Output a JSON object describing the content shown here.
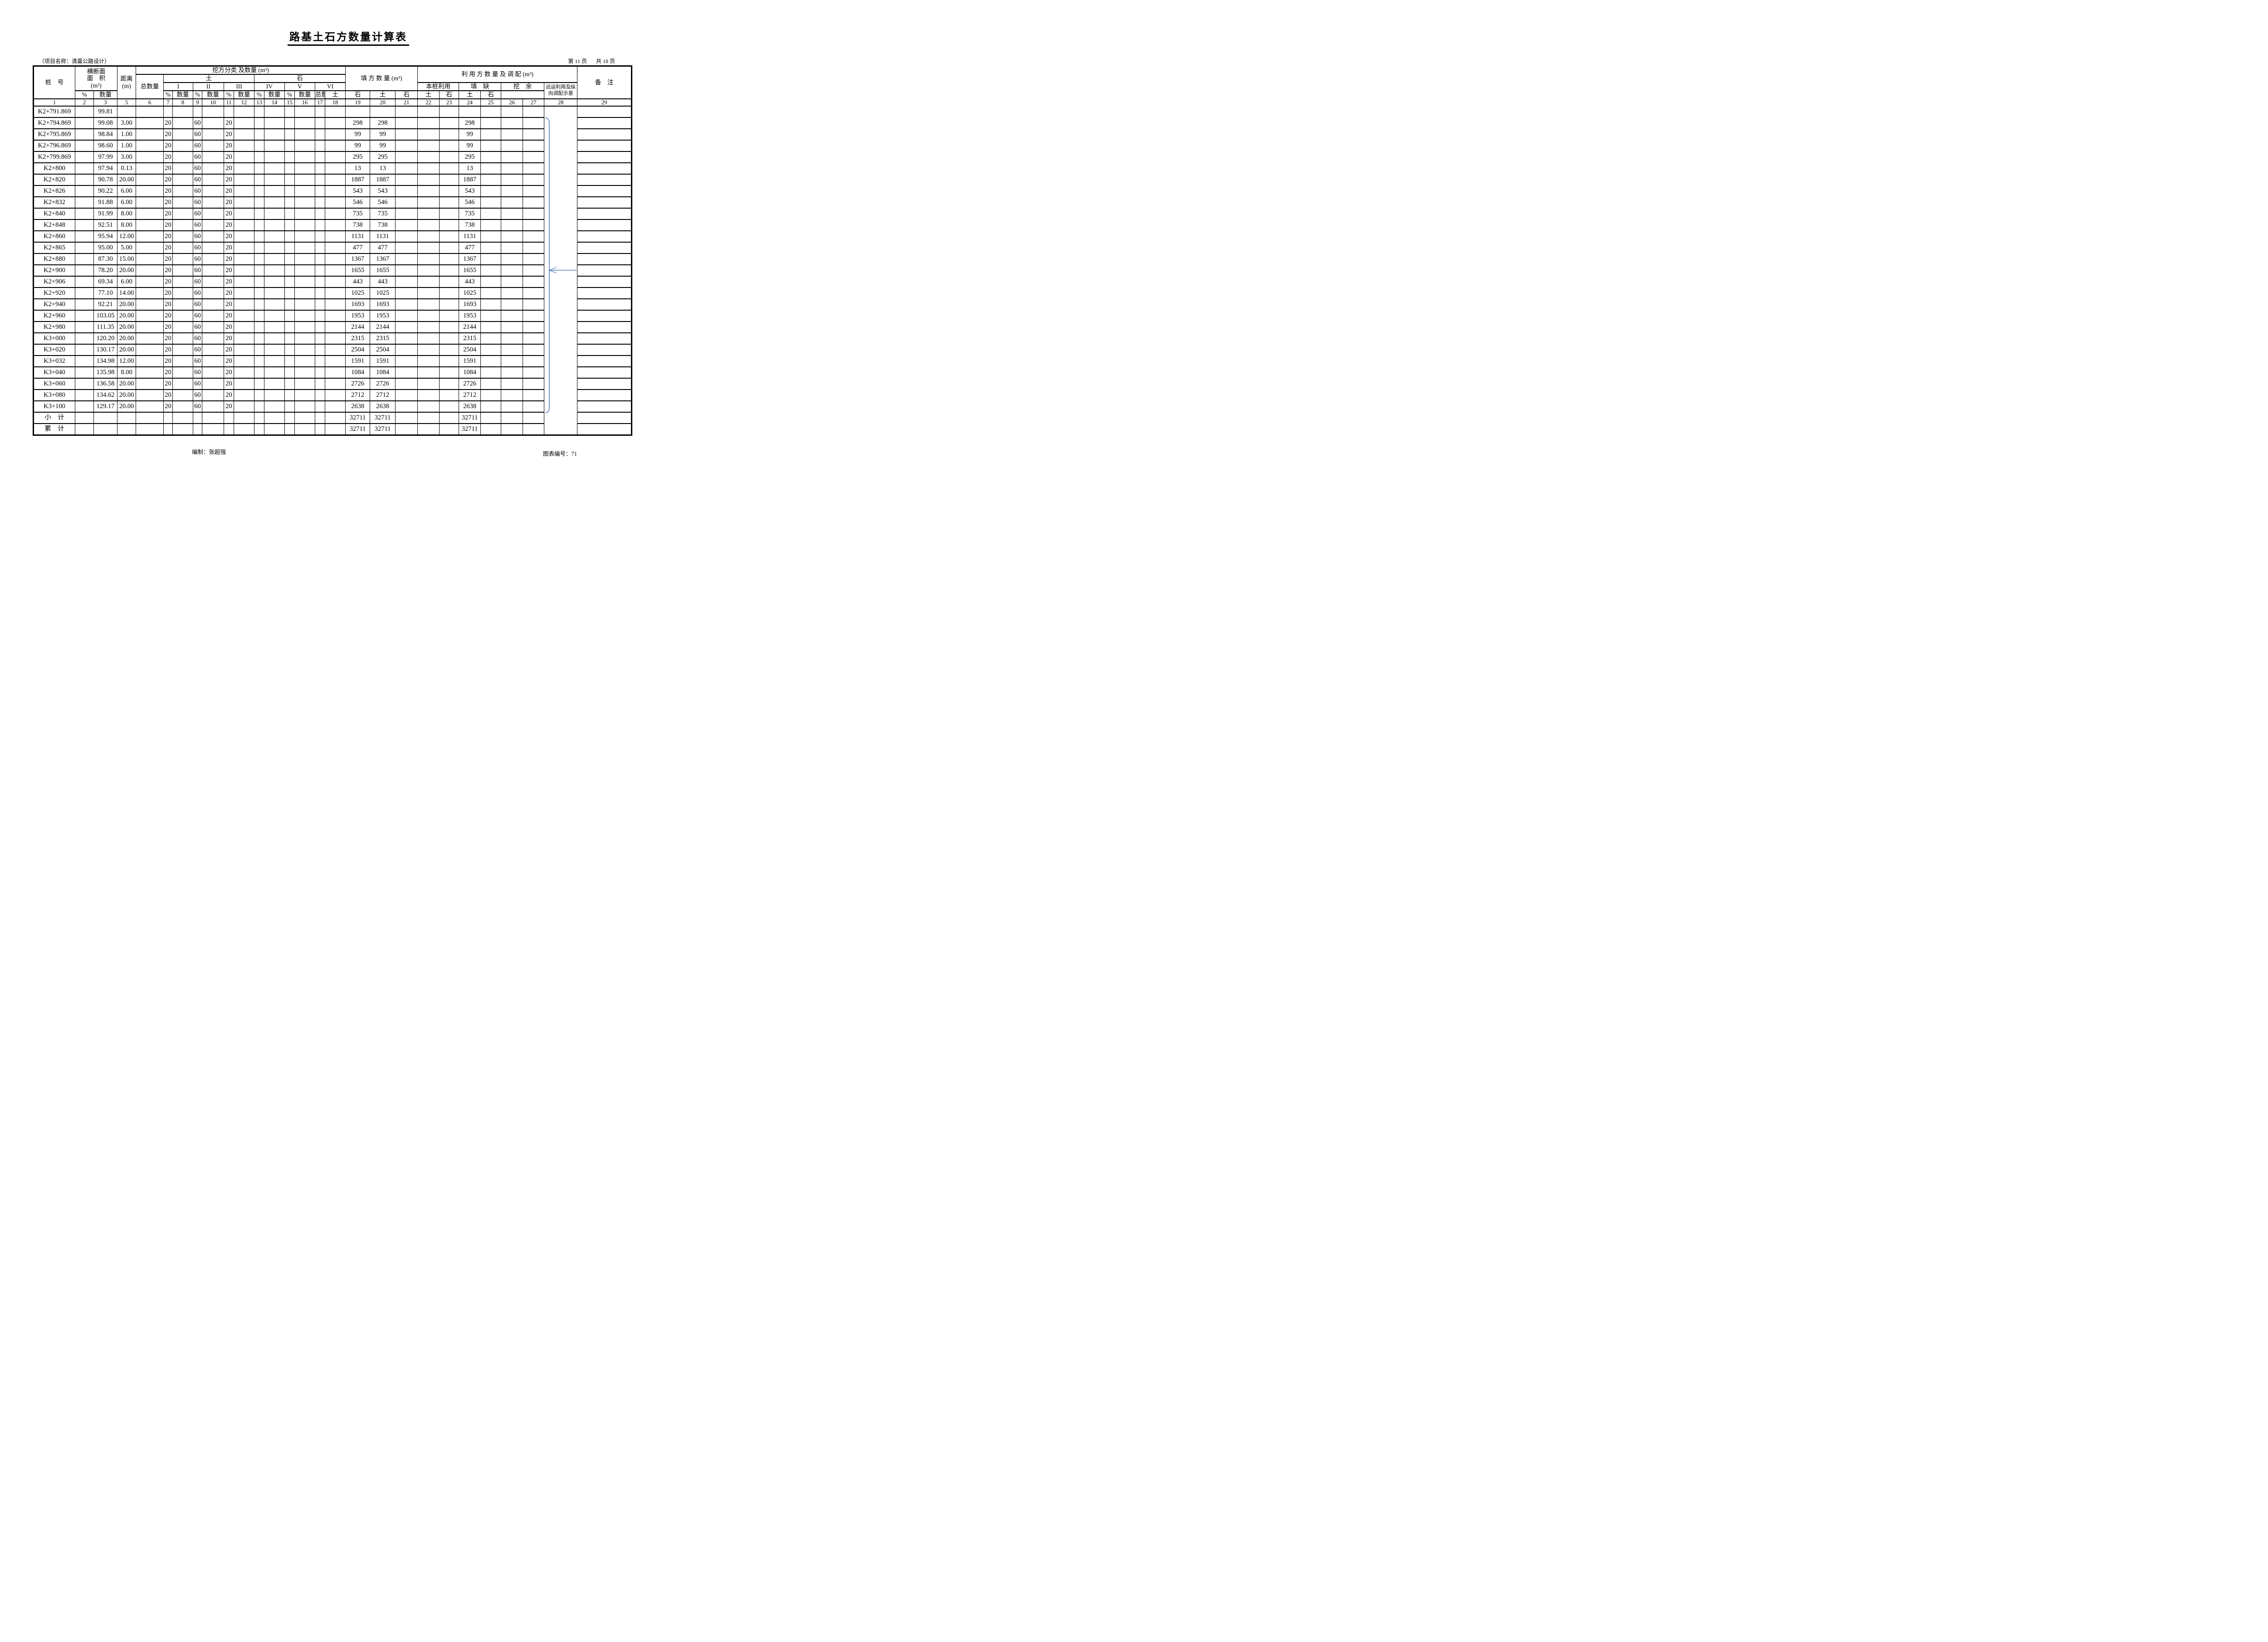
{
  "page": {
    "title": "路基土石方数量计算表",
    "project_label": "（项目名称：清嘉公路设计）",
    "page_number": "第 11 页",
    "page_total": "共 18 页",
    "footer_left": "编制：张超强",
    "footer_right": "图表编号：71"
  },
  "header": {
    "pile": "桩　号",
    "cross1": "横断面",
    "cross2": "面　积",
    "cross3": "(m²)",
    "cut": "挖方",
    "fill": "填方",
    "dist1": "距离",
    "dist2": "(m)",
    "excav_group": "挖方分类 及数量 (m³)",
    "total": "总数量",
    "soil": "土",
    "rock": "石",
    "grades": [
      "I",
      "II",
      "III",
      "IV",
      "V",
      "VI"
    ],
    "pct": "%",
    "qty": "数量",
    "fill_group": "填 方 数 量 (m³)",
    "use_group": "利 用 方 数 量 及 调 配 (m³)",
    "pile_use": "本桩利用",
    "fill_short": "填　缺",
    "cut_surplus": "挖　余",
    "haul1": "远运利用及纵",
    "haul2": "向调配示意",
    "remark": "备　注",
    "numbers": [
      "1",
      "2",
      "3",
      "5",
      "6",
      "7",
      "8",
      "9",
      "10",
      "11",
      "12",
      "13",
      "14",
      "15",
      "16",
      "17",
      "18",
      "19",
      "20",
      "21",
      "22",
      "23",
      "24",
      "25",
      "26",
      "27",
      "28",
      "29"
    ]
  },
  "rows": [
    [
      "K2+791.869",
      "99.81",
      "",
      "",
      "",
      "",
      "",
      "",
      ""
    ],
    [
      "K2+794.869",
      "99.08",
      "3.00",
      "20",
      "60",
      "20",
      "298",
      "298",
      "298"
    ],
    [
      "K2+795.869",
      "98.84",
      "1.00",
      "20",
      "60",
      "20",
      "99",
      "99",
      "99"
    ],
    [
      "K2+796.869",
      "98.60",
      "1.00",
      "20",
      "60",
      "20",
      "99",
      "99",
      "99"
    ],
    [
      "K2+799.869",
      "97.99",
      "3.00",
      "20",
      "60",
      "20",
      "295",
      "295",
      "295"
    ],
    [
      "K2+800",
      "97.94",
      "0.13",
      "20",
      "60",
      "20",
      "13",
      "13",
      "13"
    ],
    [
      "K2+820",
      "90.78",
      "20.00",
      "20",
      "60",
      "20",
      "1887",
      "1887",
      "1887"
    ],
    [
      "K2+826",
      "90.22",
      "6.00",
      "20",
      "60",
      "20",
      "543",
      "543",
      "543"
    ],
    [
      "K2+832",
      "91.88",
      "6.00",
      "20",
      "60",
      "20",
      "546",
      "546",
      "546"
    ],
    [
      "K2+840",
      "91.99",
      "8.00",
      "20",
      "60",
      "20",
      "735",
      "735",
      "735"
    ],
    [
      "K2+848",
      "92.51",
      "8.00",
      "20",
      "60",
      "20",
      "738",
      "738",
      "738"
    ],
    [
      "K2+860",
      "95.94",
      "12.00",
      "20",
      "60",
      "20",
      "1131",
      "1131",
      "1131"
    ],
    [
      "K2+865",
      "95.00",
      "5.00",
      "20",
      "60",
      "20",
      "477",
      "477",
      "477"
    ],
    [
      "K2+880",
      "87.30",
      "15.00",
      "20",
      "60",
      "20",
      "1367",
      "1367",
      "1367"
    ],
    [
      "K2+900",
      "78.20",
      "20.00",
      "20",
      "60",
      "20",
      "1655",
      "1655",
      "1655"
    ],
    [
      "K2+906",
      "69.34",
      "6.00",
      "20",
      "60",
      "20",
      "443",
      "443",
      "443"
    ],
    [
      "K2+920",
      "77.10",
      "14.00",
      "20",
      "60",
      "20",
      "1025",
      "1025",
      "1025"
    ],
    [
      "K2+940",
      "92.21",
      "20.00",
      "20",
      "60",
      "20",
      "1693",
      "1693",
      "1693"
    ],
    [
      "K2+960",
      "103.05",
      "20.00",
      "20",
      "60",
      "20",
      "1953",
      "1953",
      "1953"
    ],
    [
      "K2+980",
      "111.35",
      "20.00",
      "20",
      "60",
      "20",
      "2144",
      "2144",
      "2144"
    ],
    [
      "K3+000",
      "120.20",
      "20.00",
      "20",
      "60",
      "20",
      "2315",
      "2315",
      "2315"
    ],
    [
      "K3+020",
      "130.17",
      "20.00",
      "20",
      "60",
      "20",
      "2504",
      "2504",
      "2504"
    ],
    [
      "K3+032",
      "134.98",
      "12.00",
      "20",
      "60",
      "20",
      "1591",
      "1591",
      "1591"
    ],
    [
      "K3+040",
      "135.98",
      "8.00",
      "20",
      "60",
      "20",
      "1084",
      "1084",
      "1084"
    ],
    [
      "K3+060",
      "136.58",
      "20.00",
      "20",
      "60",
      "20",
      "2726",
      "2726",
      "2726"
    ],
    [
      "K3+080",
      "134.62",
      "20.00",
      "20",
      "60",
      "20",
      "2712",
      "2712",
      "2712"
    ],
    [
      "K3+100",
      "129.17",
      "20.00",
      "20",
      "60",
      "20",
      "2638",
      "2638",
      "2638"
    ],
    [
      "小　计",
      "",
      "",
      "",
      "",
      "",
      "32711",
      "32711",
      "32711"
    ],
    [
      "累　计",
      "",
      "",
      "",
      "",
      "",
      "32711",
      "32711",
      "32711"
    ]
  ],
  "annotation": {
    "color": "#5b82bc"
  }
}
